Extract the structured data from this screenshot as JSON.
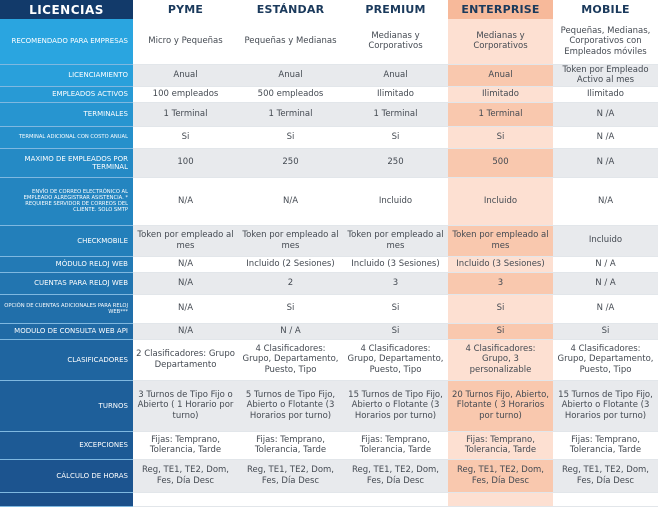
{
  "corner_label": "LICENCIAS",
  "plans": [
    "PYME",
    "ESTÁNDAR",
    "PREMIUM",
    "ENTERPRISE",
    "MOBILE"
  ],
  "highlight_plan_index": 3,
  "colors": {
    "header_bg": "#123a6a",
    "label_bg_top": "#2aa5e0",
    "label_bg_bottom": "#1b4f8a",
    "enterprise_highlight": "#f9c8ae"
  },
  "rows": [
    {
      "label": "RECOMENDADO PARA EMPRESAS",
      "values": [
        "Micro y Pequeñas",
        "Pequeñas y Medianas",
        "Medianas y Corporativos",
        "Medianas y Corporativos",
        "Pequeñas, Medianas, Corporativos con Empleados móviles"
      ]
    },
    {
      "label": "LICENCIAMIENTO",
      "values": [
        "Anual",
        "Anual",
        "Anual",
        "Anual",
        "Token por Empleado Activo al mes"
      ]
    },
    {
      "label": "EMPLEADOS ACTIVOS",
      "values": [
        "100 empleados",
        "500 empleados",
        "Ilimitado",
        "Ilimitado",
        "Ilimitado"
      ]
    },
    {
      "label": "TERMINALES",
      "values": [
        "1 Terminal",
        "1 Terminal",
        "1 Terminal",
        "1 Terminal",
        "N /A"
      ]
    },
    {
      "label": "TERMINAL ADICIONAL CON COSTO ANUAL",
      "values": [
        "Si",
        "Si",
        "Si",
        "Si",
        "N /A"
      ]
    },
    {
      "label": "MAXIMO DE EMPLEADOS POR TERMINAL",
      "values": [
        "100",
        "250",
        "250",
        "500",
        "N /A"
      ]
    },
    {
      "label": "ENVÍO DE CORREO ELECTRÓNICO AL EMPLEADO ALREGISTRAR ASISTENCIA. * REQUIERE SERVIDOR DE CORREOS DEL CLIENTE. SOLO SMTP",
      "values": [
        "N/A",
        "N/A",
        "Incluido",
        "Incluido",
        "N/A"
      ]
    },
    {
      "label": "CHECKMOBILE",
      "values": [
        "Token por empleado al mes",
        "Token por empleado al mes",
        "Token por empleado al mes",
        "Token por empleado al mes",
        "Incluido"
      ]
    },
    {
      "label": "MÓDULO RELOJ WEB",
      "values": [
        "N/A",
        "Incluido (2 Sesiones)",
        "Incluido (3 Sesiones)",
        "Incluido (3 Sesiones)",
        "N / A"
      ]
    },
    {
      "label": "CUENTAS PARA RELOJ WEB",
      "values": [
        "N/A",
        "2",
        "3",
        "3",
        "N / A"
      ]
    },
    {
      "label": "OPCIÓN DE CUENTAS ADICIONALES PARA RELOJ WEB***",
      "values": [
        "N/A",
        "Si",
        "Si",
        "Si",
        "N /A"
      ]
    },
    {
      "label": "MODULO DE CONSULTA WEB API",
      "values": [
        "N/A",
        "N / A",
        "Si",
        "Si",
        "Si"
      ]
    },
    {
      "label": "CLASIFICADORES",
      "values": [
        "2 Clasificadores: Grupo Departamento",
        "4 Clasificadores: Grupo, Departamento, Puesto, Tipo",
        "4 Clasificadores: Grupo, Departamento, Puesto, Tipo",
        "4 Clasificadores: Grupo, 3 personalizable",
        "4 Clasificadores: Grupo, Departamento, Puesto, Tipo"
      ]
    },
    {
      "label": "TURNOS",
      "values": [
        "3 Turnos de Tipo Fijo o Abierto ( 1 Horario por turno)",
        "5 Turnos de Tipo Fijo, Abierto o Flotante (3 Horarios por turno)",
        "15 Turnos de Tipo Fijo, Abierto o Flotante (3 Horarios por turno)",
        "20 Turnos Fijo, Abierto, Flotante ( 3 Horarios por turno)",
        "15 Turnos de Tipo Fijo, Abierto o Flotante (3 Horarios por turno)"
      ]
    },
    {
      "label": "EXCEPCIONES",
      "values": [
        "Fijas: Temprano, Tolerancia, Tarde",
        "Fijas: Temprano, Tolerancia, Tarde",
        "Fijas: Temprano, Tolerancia, Tarde",
        "Fijas: Temprano, Tolerancia, Tarde",
        "Fijas: Temprano, Tolerancia, Tarde"
      ]
    },
    {
      "label": "CÁLCULO DE HORAS",
      "values": [
        "Reg, TE1, TE2, Dom, Fes, Día Desc",
        "Reg, TE1, TE2, Dom, Fes, Día Desc",
        "Reg, TE1, TE2, Dom, Fes, Día Desc",
        "Reg, TE1, TE2, Dom, Fes, Día Desc",
        "Reg, TE1, TE2, Dom, Fes, Día Desc"
      ]
    },
    {
      "label": "",
      "values": [
        "",
        "",
        "",
        "",
        ""
      ]
    }
  ]
}
